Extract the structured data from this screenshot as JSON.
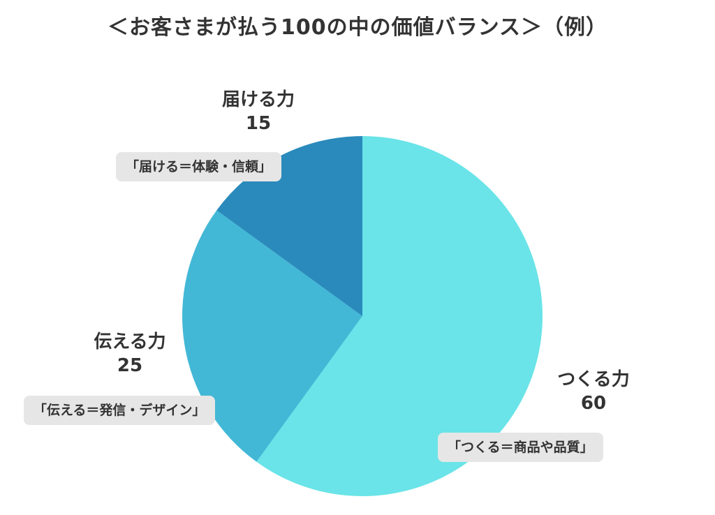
{
  "title": "＜お客さまが払う100の中の価値バランス＞（例）",
  "chart_data": {
    "type": "pie",
    "title": "＜お客さまが払う100の中の価値バランス＞（例）",
    "slices": [
      {
        "name": "つくる力",
        "value": 60,
        "note": "「つくる＝商品や品質」",
        "color": "#6ae4e8"
      },
      {
        "name": "伝える力",
        "value": 25,
        "note": "「伝える＝発信・デザイン」",
        "color": "#42b8d6"
      },
      {
        "name": "届ける力",
        "value": 15,
        "note": "「届ける＝体験・信頼」",
        "color": "#2a8abb"
      }
    ],
    "start": "12 o'clock",
    "direction": "clockwise"
  }
}
